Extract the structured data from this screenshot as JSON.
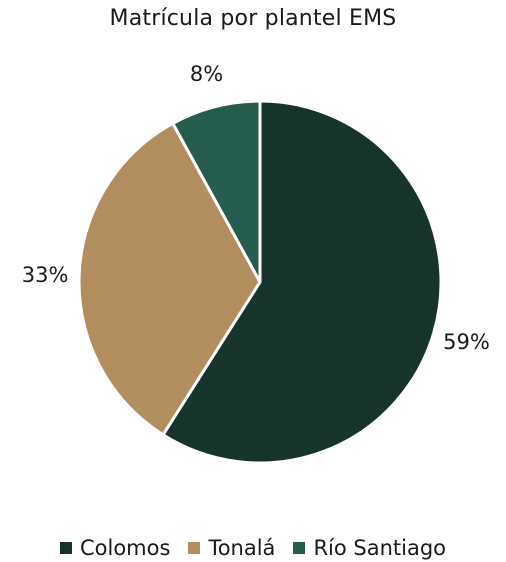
{
  "chart_data": {
    "type": "pie",
    "title": "Matrícula por plantel EMS",
    "slices": [
      {
        "label": "Colomos",
        "value": 59,
        "display": "59%",
        "color": "#16342C"
      },
      {
        "label": "Tonalá",
        "value": 33,
        "display": "33%",
        "color": "#B28D5E"
      },
      {
        "label": "Río Santiago",
        "value": 8,
        "display": "8%",
        "color": "#245C4E"
      }
    ],
    "legend_position": "bottom"
  }
}
